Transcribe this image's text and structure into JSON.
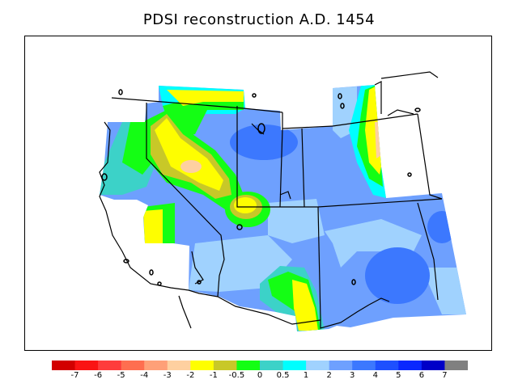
{
  "title": "PDSI reconstruction A.D. 1454",
  "colors": {
    "background": "#ffffff",
    "frame": "#000000",
    "missing": "#808080"
  },
  "colorbar": {
    "bins": [
      {
        "color": "#d20000"
      },
      {
        "color": "#fa1414"
      },
      {
        "color": "#fe3c3c"
      },
      {
        "color": "#fe6e50"
      },
      {
        "color": "#fea078"
      },
      {
        "color": "#fed0a0"
      },
      {
        "color": "#fefe00"
      },
      {
        "color": "#c8c828"
      },
      {
        "color": "#14fe14"
      },
      {
        "color": "#3cd2c8"
      },
      {
        "color": "#00fefe"
      },
      {
        "color": "#a0d2fe"
      },
      {
        "color": "#6ea0fe"
      },
      {
        "color": "#3c78fe"
      },
      {
        "color": "#1e50fe"
      },
      {
        "color": "#0a28fe"
      },
      {
        "color": "#0000c8"
      },
      {
        "color": "#808080"
      }
    ],
    "labels": [
      "-7",
      "-6",
      "-5",
      "-4",
      "-3",
      "-2",
      "-1",
      "-0.5",
      "0",
      "0.5",
      "1",
      "2",
      "3",
      "4",
      "5",
      "6",
      "7"
    ]
  },
  "map": {
    "region": "Western United States",
    "base_color": "#6ea0fe",
    "dry_core_color": "#fed0a0"
  }
}
